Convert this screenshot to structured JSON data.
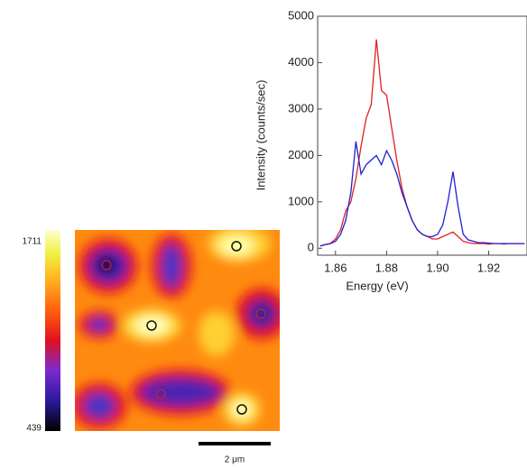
{
  "chart_data": [
    {
      "type": "line",
      "x_label": "Energy (eV)",
      "y_label": "Intensity (counts/sec)",
      "x": [
        1.854,
        1.856,
        1.858,
        1.86,
        1.862,
        1.864,
        1.866,
        1.868,
        1.87,
        1.872,
        1.874,
        1.876,
        1.878,
        1.88,
        1.882,
        1.884,
        1.886,
        1.888,
        1.89,
        1.892,
        1.894,
        1.896,
        1.898,
        1.9,
        1.902,
        1.904,
        1.906,
        1.908,
        1.91,
        1.912,
        1.914,
        1.916,
        1.918,
        1.92,
        1.922,
        1.924,
        1.926,
        1.928,
        1.93,
        1.932,
        1.934
      ],
      "series": [
        {
          "color": "#e02020",
          "values": [
            50,
            80,
            100,
            200,
            400,
            800,
            1000,
            1500,
            2200,
            2800,
            3100,
            4500,
            3400,
            3300,
            2600,
            1900,
            1300,
            900,
            600,
            400,
            300,
            250,
            200,
            200,
            250,
            300,
            350,
            250,
            150,
            120,
            100,
            100,
            100,
            90,
            100,
            100,
            90,
            100,
            100,
            100,
            100
          ]
        },
        {
          "color": "#2020d0",
          "values": [
            50,
            80,
            100,
            150,
            300,
            600,
            1200,
            2300,
            1600,
            1800,
            1900,
            2000,
            1800,
            2100,
            1900,
            1600,
            1200,
            900,
            600,
            400,
            300,
            250,
            250,
            300,
            500,
            1000,
            1650,
            900,
            300,
            180,
            150,
            120,
            120,
            110,
            100,
            100,
            100,
            100,
            100,
            100,
            100
          ]
        }
      ],
      "xlim": [
        1.853,
        1.935
      ],
      "xticks": [
        1.86,
        1.88,
        {
          "value": 1.9,
          "label": "1.90"
        },
        1.92
      ],
      "ylim": [
        -150,
        5000
      ],
      "yticks": [
        0,
        1000,
        2000,
        3000,
        4000,
        5000
      ]
    },
    {
      "type": "heatmap",
      "clim": [
        439,
        1711
      ],
      "colorbar_ticks": [
        439,
        1711
      ],
      "scale_bar_label": "2 μm"
    }
  ]
}
